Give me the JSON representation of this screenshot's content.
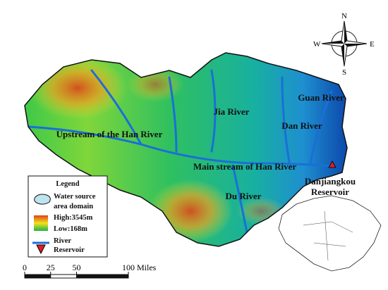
{
  "map": {
    "labels": [
      {
        "text": "Upstream of the Han River"
      },
      {
        "text": "Jia River"
      },
      {
        "text": "Guan River"
      },
      {
        "text": "Dan River"
      },
      {
        "text": "Main stream of Han River"
      },
      {
        "text": "Du River"
      },
      {
        "lines": [
          "Danjiangkou",
          "Reservoir"
        ]
      }
    ],
    "compass": {
      "north": "N",
      "east": "E",
      "south": "S",
      "west": "W"
    },
    "legend": {
      "title": "Legend",
      "items": [
        {
          "lines": [
            "Water source",
            "area domain"
          ]
        },
        {
          "lines": [
            "High:3545m"
          ]
        },
        {
          "lines": [
            "Low:168m"
          ]
        },
        {
          "lines": [
            "River"
          ]
        },
        {
          "lines": [
            "Reservoir"
          ]
        }
      ]
    },
    "scale_bar": {
      "ticks": [
        0,
        25,
        50,
        100
      ],
      "unit": "Miles"
    }
  }
}
